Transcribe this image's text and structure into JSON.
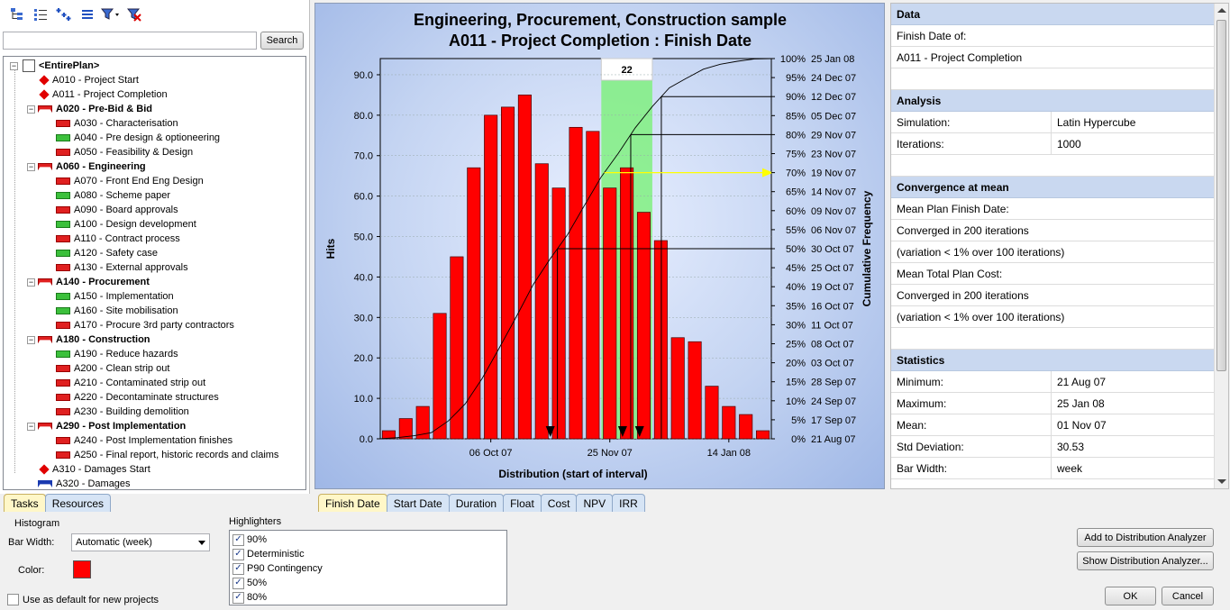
{
  "toolbar": {
    "icons": [
      "tree-structure-icon",
      "list-view-icon",
      "expand-all-icon",
      "collapse-all-icon",
      "filter-icon",
      "clear-filter-icon"
    ]
  },
  "search": {
    "value": "",
    "placeholder": "",
    "button_label": "Search"
  },
  "tree": {
    "items": [
      {
        "label": "<EntirePlan>",
        "kind": "plan",
        "level": 0,
        "summary": true
      },
      {
        "label": "A010 - Project Start",
        "kind": "milestone",
        "level": 1
      },
      {
        "label": "A011 - Project Completion",
        "kind": "milestone",
        "level": 1
      },
      {
        "label": "A020 - Pre-Bid & Bid",
        "kind": "summary",
        "level": 1,
        "summary": true
      },
      {
        "label": "A030 - Characterisation",
        "kind": "red",
        "level": 2
      },
      {
        "label": "A040 - Pre design & optioneering",
        "kind": "green",
        "level": 2
      },
      {
        "label": "A050 - Feasibility & Design",
        "kind": "red",
        "level": 2
      },
      {
        "label": "A060 - Engineering",
        "kind": "summary",
        "level": 1,
        "summary": true
      },
      {
        "label": "A070 - Front End Eng Design",
        "kind": "red",
        "level": 2
      },
      {
        "label": "A080 - Scheme paper",
        "kind": "green",
        "level": 2
      },
      {
        "label": "A090 - Board approvals",
        "kind": "red",
        "level": 2
      },
      {
        "label": "A100 - Design development",
        "kind": "green",
        "level": 2
      },
      {
        "label": "A110 - Contract process",
        "kind": "red",
        "level": 2
      },
      {
        "label": "A120 - Safety case",
        "kind": "green",
        "level": 2
      },
      {
        "label": "A130 - External approvals",
        "kind": "red",
        "level": 2
      },
      {
        "label": "A140 - Procurement",
        "kind": "summary",
        "level": 1,
        "summary": true
      },
      {
        "label": "A150 - Implementation",
        "kind": "green",
        "level": 2
      },
      {
        "label": "A160 - Site mobilisation",
        "kind": "green",
        "level": 2
      },
      {
        "label": "A170 - Procure 3rd party contractors",
        "kind": "red",
        "level": 2
      },
      {
        "label": "A180 - Construction",
        "kind": "summary",
        "level": 1,
        "summary": true
      },
      {
        "label": "A190 - Reduce hazards",
        "kind": "green",
        "level": 2
      },
      {
        "label": "A200 - Clean strip out",
        "kind": "red",
        "level": 2
      },
      {
        "label": "A210 - Contaminated strip out",
        "kind": "red",
        "level": 2
      },
      {
        "label": "A220 - Decontaminate structures",
        "kind": "red",
        "level": 2
      },
      {
        "label": "A230 - Building demolition",
        "kind": "red",
        "level": 2
      },
      {
        "label": "A290 - Post Implementation",
        "kind": "summary",
        "level": 1,
        "summary": true
      },
      {
        "label": "A240 - Post Implementation finishes",
        "kind": "red",
        "level": 2
      },
      {
        "label": "A250 - Final report, historic records and claims",
        "kind": "red",
        "level": 2
      },
      {
        "label": "A310 - Damages Start",
        "kind": "milestone",
        "level": 1
      },
      {
        "label": "A320 - Damages",
        "kind": "summary-blue",
        "level": 1
      }
    ]
  },
  "left_tabs": [
    {
      "label": "Tasks",
      "active": true
    },
    {
      "label": "Resources",
      "active": false
    }
  ],
  "chart_tabs": [
    {
      "label": "Finish Date",
      "active": true
    },
    {
      "label": "Start Date",
      "active": false
    },
    {
      "label": "Duration",
      "active": false
    },
    {
      "label": "Float",
      "active": false
    },
    {
      "label": "Cost",
      "active": false
    },
    {
      "label": "NPV",
      "active": false
    },
    {
      "label": "IRR",
      "active": false
    }
  ],
  "chart_data": {
    "type": "bar",
    "title": "Engineering, Procurement, Construction sample",
    "subtitle": "A011 - Project Completion : Finish Date",
    "xlabel": "Distribution (start of interval)",
    "ylabel": "Hits",
    "y2label": "Cumulative Frequency",
    "ylim": [
      0,
      94
    ],
    "yticks": [
      "0.0",
      "10.0",
      "20.0",
      "30.0",
      "40.0",
      "50.0",
      "60.0",
      "70.0",
      "80.0",
      "90.0"
    ],
    "xticks": [
      {
        "label": "06 Oct 07",
        "bar_index": 6.5
      },
      {
        "label": "25 Nov 07",
        "bar_index": 13.5
      },
      {
        "label": "14 Jan 08",
        "bar_index": 20.5
      }
    ],
    "values": [
      2,
      5,
      8,
      31,
      45,
      67,
      80,
      82,
      85,
      68,
      62,
      77,
      76,
      62,
      67,
      56,
      49,
      25,
      24,
      13,
      8,
      6,
      2
    ],
    "cumulative_labels": [
      {
        "pct": "0%",
        "date": "21 Aug 07"
      },
      {
        "pct": "5%",
        "date": "17 Sep 07"
      },
      {
        "pct": "10%",
        "date": "24 Sep 07"
      },
      {
        "pct": "15%",
        "date": "28 Sep 07"
      },
      {
        "pct": "20%",
        "date": "03 Oct 07"
      },
      {
        "pct": "25%",
        "date": "08 Oct 07"
      },
      {
        "pct": "30%",
        "date": "11 Oct 07"
      },
      {
        "pct": "35%",
        "date": "16 Oct 07"
      },
      {
        "pct": "40%",
        "date": "19 Oct 07"
      },
      {
        "pct": "45%",
        "date": "25 Oct 07"
      },
      {
        "pct": "50%",
        "date": "30 Oct 07"
      },
      {
        "pct": "55%",
        "date": "06 Nov 07"
      },
      {
        "pct": "60%",
        "date": "09 Nov 07"
      },
      {
        "pct": "65%",
        "date": "14 Nov 07"
      },
      {
        "pct": "70%",
        "date": "19 Nov 07"
      },
      {
        "pct": "75%",
        "date": "23 Nov 07"
      },
      {
        "pct": "80%",
        "date": "29 Nov 07"
      },
      {
        "pct": "85%",
        "date": "05 Dec 07"
      },
      {
        "pct": "90%",
        "date": "12 Dec 07"
      },
      {
        "pct": "95%",
        "date": "24 Dec 07"
      },
      {
        "pct": "100%",
        "date": "25 Jan 08"
      }
    ],
    "cumulative_pct": [
      0.3,
      0.8,
      1.6,
      4.7,
      9.2,
      15.9,
      23.9,
      32.1,
      40.6,
      47.4,
      53.6,
      61.3,
      68.9,
      75.1,
      81.8,
      87.4,
      92.3,
      94.8,
      97.2,
      98.5,
      99.3,
      99.9,
      100
    ],
    "highlight_band": {
      "start_bar": 13,
      "end_bar": 15,
      "label": "22",
      "color": "#80f080"
    },
    "bar_color": "#ff0000",
    "reference_lines": [
      {
        "name": "90%",
        "pct": 90,
        "color": "#000000"
      },
      {
        "name": "80%",
        "pct": 80,
        "color": "#000000"
      },
      {
        "name": "P90 Contingency",
        "pct": 70,
        "color": "#ffff00"
      },
      {
        "name": "50%",
        "pct": 50,
        "color": "#000000"
      }
    ],
    "markers_at_bar_index": [
      10.0,
      14.25,
      15.25
    ]
  },
  "data_panel": {
    "sections": [
      {
        "title": "Data",
        "rows": [
          {
            "full": "Finish Date of:"
          },
          {
            "full": "A011 - Project Completion"
          },
          {
            "full": ""
          }
        ]
      },
      {
        "title": "Analysis",
        "rows": [
          {
            "k": "Simulation:",
            "v": "Latin Hypercube"
          },
          {
            "k": "Iterations:",
            "v": "1000"
          },
          {
            "full": ""
          }
        ]
      },
      {
        "title": "Convergence at mean",
        "rows": [
          {
            "full": "Mean Plan Finish Date:"
          },
          {
            "full": "Converged in 200 iterations"
          },
          {
            "full": "(variation < 1% over 100 iterations)"
          },
          {
            "full": "Mean Total Plan Cost:"
          },
          {
            "full": "Converged in 200 iterations"
          },
          {
            "full": "(variation < 1% over 100 iterations)"
          },
          {
            "full": ""
          }
        ]
      },
      {
        "title": "Statistics",
        "rows": [
          {
            "k": "Minimum:",
            "v": "21 Aug 07"
          },
          {
            "k": "Maximum:",
            "v": "25 Jan 08"
          },
          {
            "k": "Mean:",
            "v": "01 Nov 07"
          },
          {
            "k": "Std Deviation:",
            "v": "30.53"
          },
          {
            "k": "Bar Width:",
            "v": "week"
          }
        ]
      }
    ]
  },
  "histogram": {
    "title": "Histogram",
    "bar_width_label": "Bar Width:",
    "bar_width_value": "Automatic (week)",
    "color_label": "Color:",
    "color_value": "#ff0000",
    "default_label": "Use as default for new projects",
    "default_checked": false
  },
  "highlighters": {
    "title": "Highlighters",
    "items": [
      {
        "label": "90%",
        "checked": true
      },
      {
        "label": "Deterministic",
        "checked": true
      },
      {
        "label": "P90 Contingency",
        "checked": true
      },
      {
        "label": "50%",
        "checked": true
      },
      {
        "label": "80%",
        "checked": true
      }
    ]
  },
  "buttons": {
    "add_dist": "Add to Distribution Analyzer",
    "show_dist": "Show Distribution Analyzer...",
    "ok": "OK",
    "cancel": "Cancel"
  }
}
